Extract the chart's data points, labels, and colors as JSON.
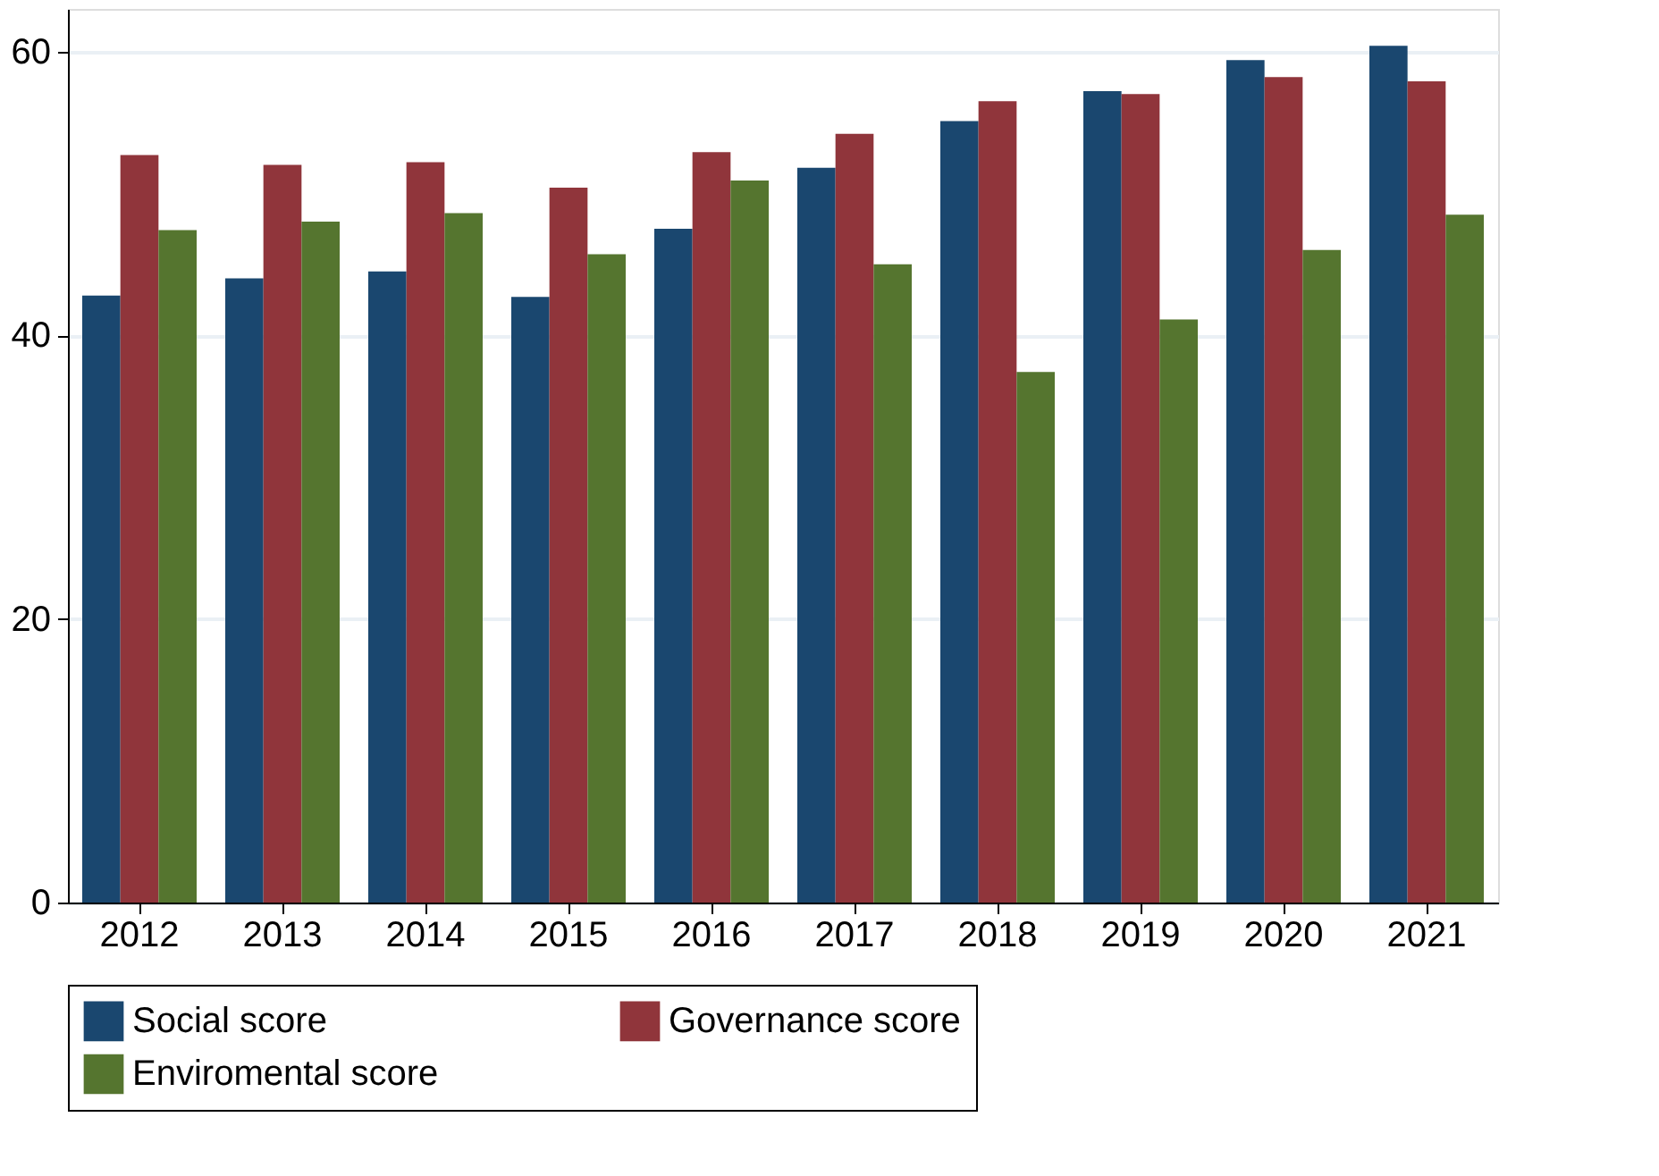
{
  "chart_data": {
    "type": "bar",
    "categories": [
      "2012",
      "2013",
      "2014",
      "2015",
      "2016",
      "2017",
      "2018",
      "2019",
      "2020",
      "2021"
    ],
    "series": [
      {
        "name": "Social score",
        "color": "#1a476f",
        "values": [
          42.8,
          44.0,
          44.5,
          42.7,
          47.5,
          51.8,
          55.1,
          57.2,
          59.4,
          60.4
        ]
      },
      {
        "name": "Governance score",
        "color": "#90353b",
        "values": [
          52.7,
          52.0,
          52.2,
          50.4,
          52.9,
          54.2,
          56.5,
          57.0,
          58.2,
          57.9
        ]
      },
      {
        "name": "Enviromental score",
        "color": "#55752f",
        "values": [
          47.4,
          48.0,
          48.6,
          45.7,
          50.9,
          45.0,
          37.4,
          41.1,
          46.0,
          48.5
        ]
      }
    ],
    "ylim": [
      0,
      63
    ],
    "yticks": [
      0,
      20,
      40,
      60
    ],
    "grid": "y",
    "legend": "bottom"
  }
}
